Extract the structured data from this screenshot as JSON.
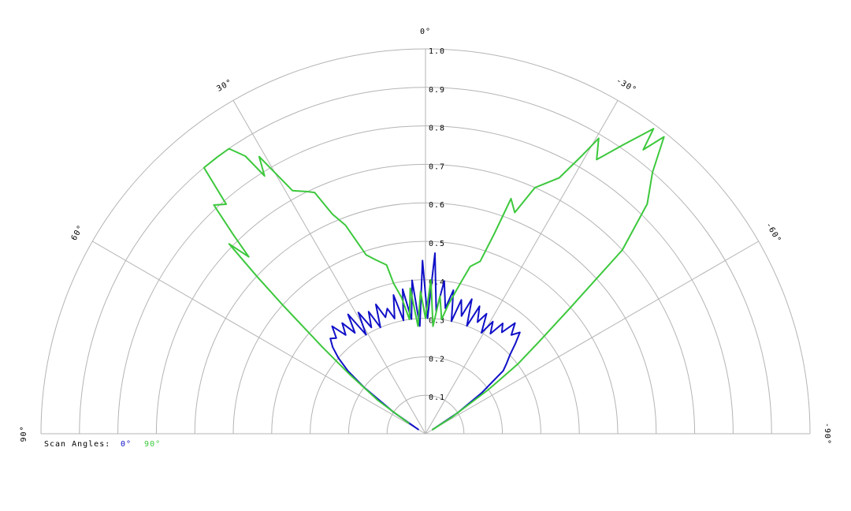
{
  "chart_data": {
    "type": "polar",
    "legend_title": "Scan Angles:",
    "rlim": [
      0,
      1
    ],
    "rticks": [
      0.1,
      0.2,
      0.3,
      0.4,
      0.5,
      0.6,
      0.7,
      0.8,
      0.9,
      {
        "value": 1,
        "label": "1.0"
      }
    ],
    "thetaticks": [
      {
        "value": 90,
        "label": "90°"
      },
      {
        "value": 60,
        "label": "60°"
      },
      {
        "value": 30,
        "label": "30°"
      },
      {
        "value": 0,
        "label": "0°"
      },
      {
        "value": -30,
        "label": "-30°"
      },
      {
        "value": -60,
        "label": "-60°"
      },
      {
        "value": -90,
        "label": "-90°"
      }
    ],
    "grid": true,
    "series": [
      {
        "name": "0°",
        "color": "#1010c8",
        "x": [
          60,
          56,
          53,
          51,
          49,
          47,
          45,
          43,
          41,
          39,
          37,
          35,
          33,
          31,
          29,
          27,
          25,
          23,
          21,
          19,
          17,
          15,
          13,
          11,
          9,
          7,
          5,
          3,
          1,
          -1,
          -3,
          -5,
          -7,
          -9,
          -11,
          -13,
          -15,
          -17,
          -19,
          -21,
          -23,
          -25,
          -27,
          -29,
          -31,
          -33,
          -35,
          -37,
          -39,
          -41,
          -43,
          -45,
          -47,
          -49,
          -51,
          -54,
          -57,
          -60
        ],
        "values": [
          0.02,
          0.1,
          0.2,
          0.26,
          0.3,
          0.33,
          0.35,
          0.34,
          0.37,
          0.33,
          0.36,
          0.32,
          0.37,
          0.3,
          0.36,
          0.31,
          0.35,
          0.3,
          0.36,
          0.32,
          0.34,
          0.31,
          0.37,
          0.3,
          0.38,
          0.3,
          0.4,
          0.28,
          0.45,
          0.3,
          0.47,
          0.32,
          0.4,
          0.33,
          0.38,
          0.3,
          0.36,
          0.32,
          0.37,
          0.3,
          0.36,
          0.32,
          0.35,
          0.3,
          0.34,
          0.31,
          0.35,
          0.33,
          0.37,
          0.34,
          0.36,
          0.33,
          0.3,
          0.28,
          0.26,
          0.18,
          0.1,
          0.02
        ]
      },
      {
        "name": "90°",
        "color": "#3cc83c",
        "x": [
          58,
          55,
          52,
          50,
          48,
          47,
          46,
          45,
          44,
          42.8,
          41,
          39.8,
          37,
          34.6,
          33,
          32,
          31,
          28.7,
          26,
          24.7,
          23,
          21,
          18.4,
          16,
          13,
          12,
          10,
          8,
          6,
          4,
          2,
          0,
          -2,
          -4,
          -6,
          -8,
          -10,
          -13,
          -15,
          -17.6,
          -19,
          -20,
          -22,
          -24,
          -27.6,
          -29.4,
          -30.4,
          -32,
          -34.4,
          -36.8,
          -37.5,
          -38.8,
          -41,
          -44,
          -47,
          -49,
          -51,
          -53,
          -55,
          -58,
          -60
        ],
        "values": [
          0.05,
          0.15,
          0.25,
          0.35,
          0.5,
          0.6,
          0.71,
          0.65,
          0.72,
          0.81,
          0.79,
          0.9,
          0.9,
          0.9,
          0.86,
          0.79,
          0.84,
          0.72,
          0.7,
          0.69,
          0.62,
          0.58,
          0.49,
          0.47,
          0.45,
          0.4,
          0.36,
          0.3,
          0.38,
          0.28,
          0.37,
          0.3,
          0.4,
          0.28,
          0.36,
          0.3,
          0.34,
          0.4,
          0.45,
          0.47,
          0.55,
          0.65,
          0.62,
          0.7,
          0.75,
          0.83,
          0.89,
          0.84,
          0.91,
          0.99,
          0.93,
          0.99,
          0.9,
          0.83,
          0.7,
          0.5,
          0.38,
          0.3,
          0.2,
          0.08,
          0.02
        ]
      }
    ]
  }
}
